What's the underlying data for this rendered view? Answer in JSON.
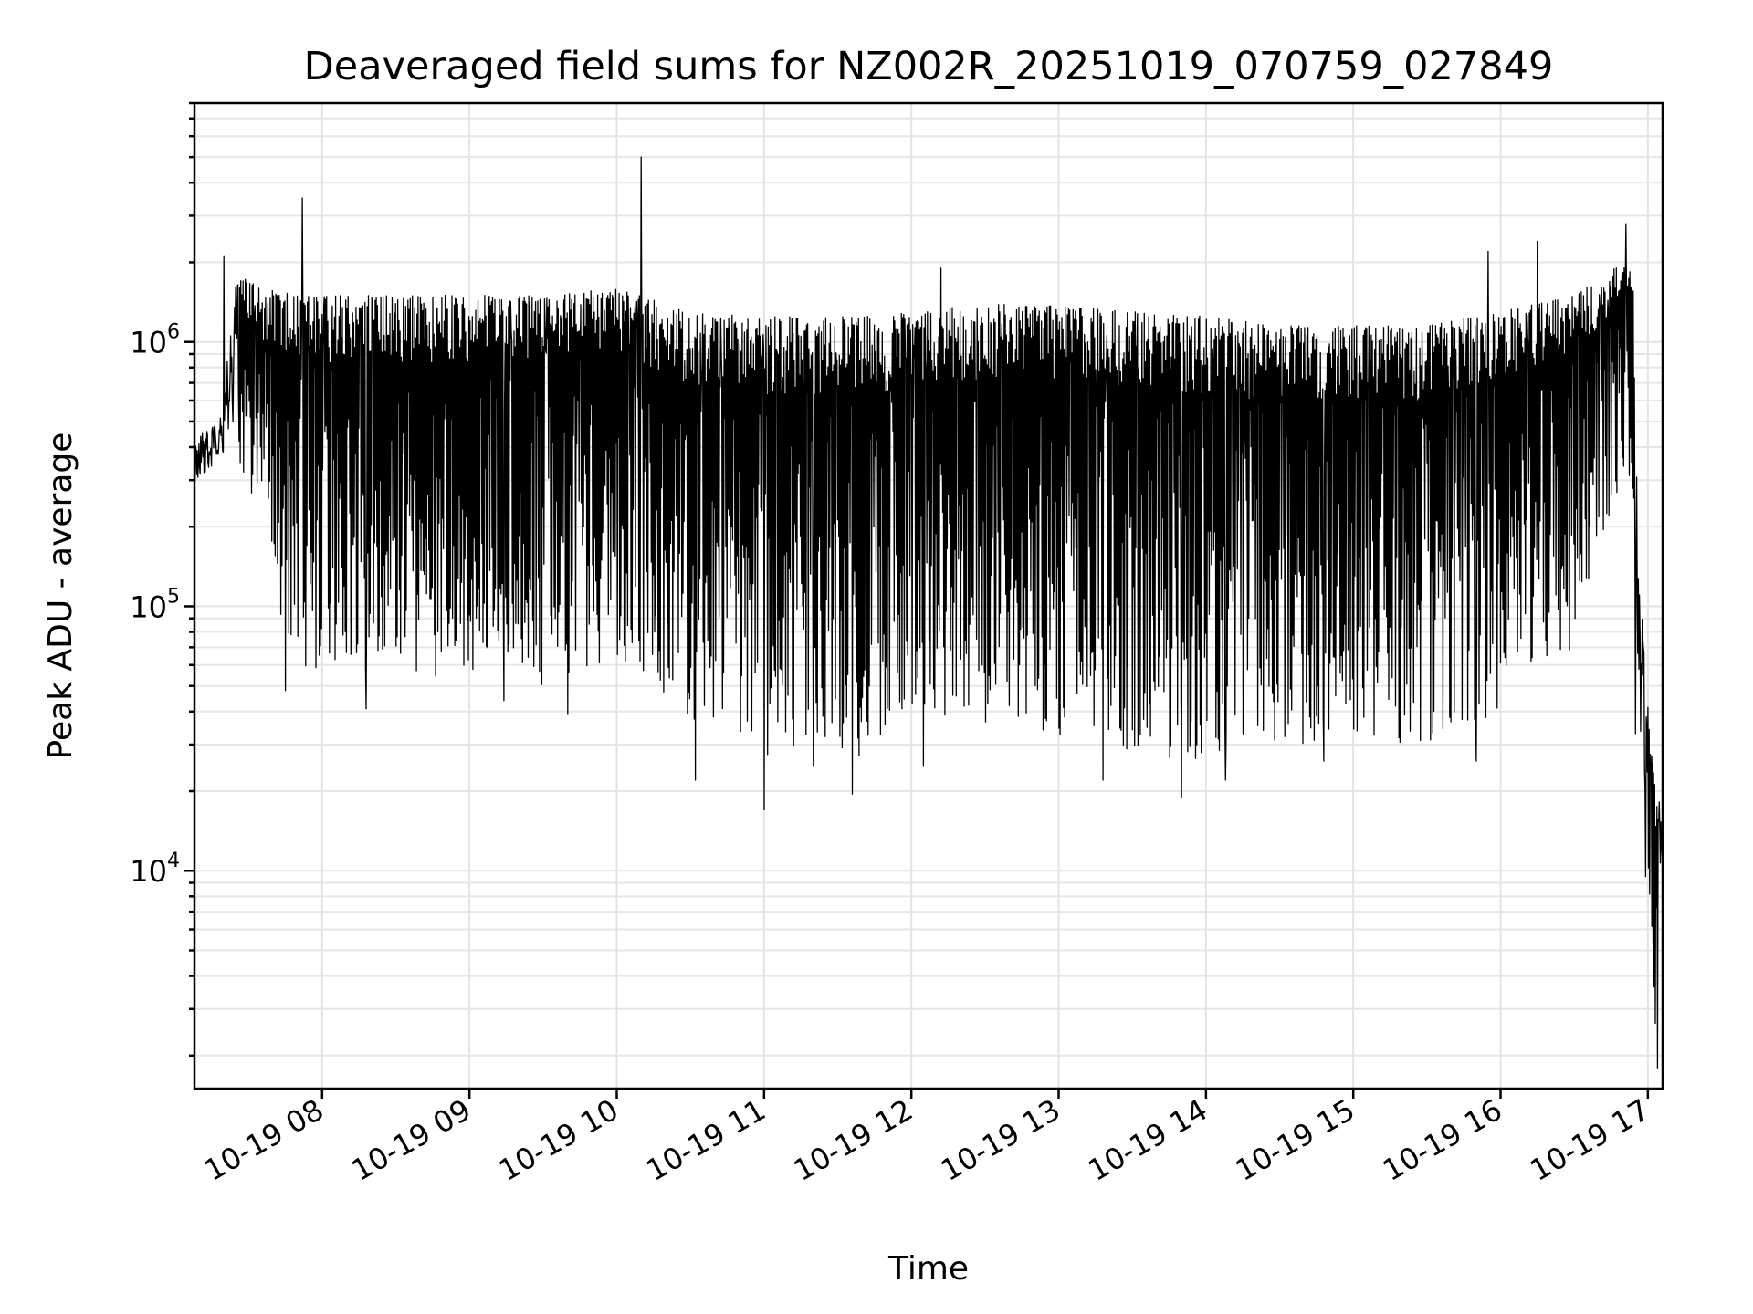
{
  "chart_data": {
    "type": "line",
    "title": "Deaveraged field sums for NZ002R_20251019_070759_027849",
    "xlabel": "Time",
    "ylabel": "Peak ADU - average",
    "yscale": "log",
    "xlim": [
      "10-19 07:08",
      "10-19 17:06"
    ],
    "ylim": [
      1500,
      8000000
    ],
    "grid": true,
    "legend": "none",
    "line_color": "#000000",
    "x_ticks": [
      {
        "value": "10-19 08",
        "label": "10-19 08"
      },
      {
        "value": "10-19 09",
        "label": "10-19 09"
      },
      {
        "value": "10-19 10",
        "label": "10-19 10"
      },
      {
        "value": "10-19 11",
        "label": "10-19 11"
      },
      {
        "value": "10-19 12",
        "label": "10-19 12"
      },
      {
        "value": "10-19 13",
        "label": "10-19 13"
      },
      {
        "value": "10-19 14",
        "label": "10-19 14"
      },
      {
        "value": "10-19 15",
        "label": "10-19 15"
      },
      {
        "value": "10-19 16",
        "label": "10-19 16"
      },
      {
        "value": "10-19 17",
        "label": "10-19 17"
      }
    ],
    "y_ticks": [
      {
        "value": 10000,
        "base": "10",
        "exp": "4"
      },
      {
        "value": 100000,
        "base": "10",
        "exp": "5"
      },
      {
        "value": 1000000,
        "base": "10",
        "exp": "6"
      }
    ],
    "envelope": [
      {
        "x": "10-19 07:08",
        "upper": 400000,
        "lower": 270000
      },
      {
        "x": "10-19 07:20",
        "upper": 650000,
        "lower": 330000
      },
      {
        "x": "10-19 07:25",
        "upper": 1800000,
        "lower": 400000
      },
      {
        "x": "10-19 07:35",
        "upper": 1600000,
        "lower": 130000
      },
      {
        "x": "10-19 07:50",
        "upper": 1500000,
        "lower": 55000
      },
      {
        "x": "10-19 08:30",
        "upper": 1500000,
        "lower": 55000
      },
      {
        "x": "10-19 09:30",
        "upper": 1500000,
        "lower": 50000
      },
      {
        "x": "10-19 10:00",
        "upper": 1600000,
        "lower": 65000
      },
      {
        "x": "10-19 10:30",
        "upper": 1300000,
        "lower": 38000
      },
      {
        "x": "10-19 11:00",
        "upper": 1250000,
        "lower": 27000
      },
      {
        "x": "10-19 11:45",
        "upper": 1250000,
        "lower": 27000
      },
      {
        "x": "10-19 12:15",
        "upper": 1350000,
        "lower": 38000
      },
      {
        "x": "10-19 12:45",
        "upper": 1400000,
        "lower": 35000
      },
      {
        "x": "10-19 13:30",
        "upper": 1300000,
        "lower": 28000
      },
      {
        "x": "10-19 14:00",
        "upper": 1250000,
        "lower": 25000
      },
      {
        "x": "10-19 14:30",
        "upper": 1150000,
        "lower": 30000
      },
      {
        "x": "10-19 15:30",
        "upper": 1150000,
        "lower": 30000
      },
      {
        "x": "10-19 16:00",
        "upper": 1300000,
        "lower": 40000
      },
      {
        "x": "10-19 16:30",
        "upper": 1500000,
        "lower": 70000
      },
      {
        "x": "10-19 16:50",
        "upper": 2000000,
        "lower": 300000
      },
      {
        "x": "10-19 16:54",
        "upper": 1800000,
        "lower": 150000
      },
      {
        "x": "10-19 16:56",
        "upper": 150000,
        "lower": 35000
      },
      {
        "x": "10-19 17:00",
        "upper": 45000,
        "lower": 9000
      },
      {
        "x": "10-19 17:03",
        "upper": 20000,
        "lower": 1800
      },
      {
        "x": "10-19 17:06",
        "upper": 20000,
        "lower": 10000
      }
    ],
    "spikes": [
      {
        "x": "10-19 07:52",
        "y": 3500000
      },
      {
        "x": "10-19 10:10",
        "y": 5000000
      },
      {
        "x": "10-19 12:12",
        "y": 1900000
      },
      {
        "x": "10-19 15:55",
        "y": 2200000
      },
      {
        "x": "10-19 16:15",
        "y": 2400000
      },
      {
        "x": "10-19 16:51",
        "y": 2800000
      },
      {
        "x": "10-19 07:20",
        "y": 2100000
      }
    ],
    "dips": [
      {
        "x": "10-19 07:45",
        "y": 48000
      },
      {
        "x": "10-19 08:18",
        "y": 41000
      },
      {
        "x": "10-19 09:14",
        "y": 44000
      },
      {
        "x": "10-19 09:40",
        "y": 39000
      },
      {
        "x": "10-19 10:32",
        "y": 22000
      },
      {
        "x": "10-19 11:00",
        "y": 17000
      },
      {
        "x": "10-19 11:20",
        "y": 25000
      },
      {
        "x": "10-19 11:36",
        "y": 19500
      },
      {
        "x": "10-19 12:05",
        "y": 25000
      },
      {
        "x": "10-19 13:18",
        "y": 22000
      },
      {
        "x": "10-19 13:50",
        "y": 19000
      },
      {
        "x": "10-19 14:08",
        "y": 22000
      },
      {
        "x": "10-19 14:48",
        "y": 26000
      },
      {
        "x": "10-19 15:50",
        "y": 26000
      },
      {
        "x": "10-19 16:55",
        "y": 33000
      },
      {
        "x": "10-19 16:59",
        "y": 9500
      },
      {
        "x": "10-19 17:04",
        "y": 1800
      }
    ]
  }
}
